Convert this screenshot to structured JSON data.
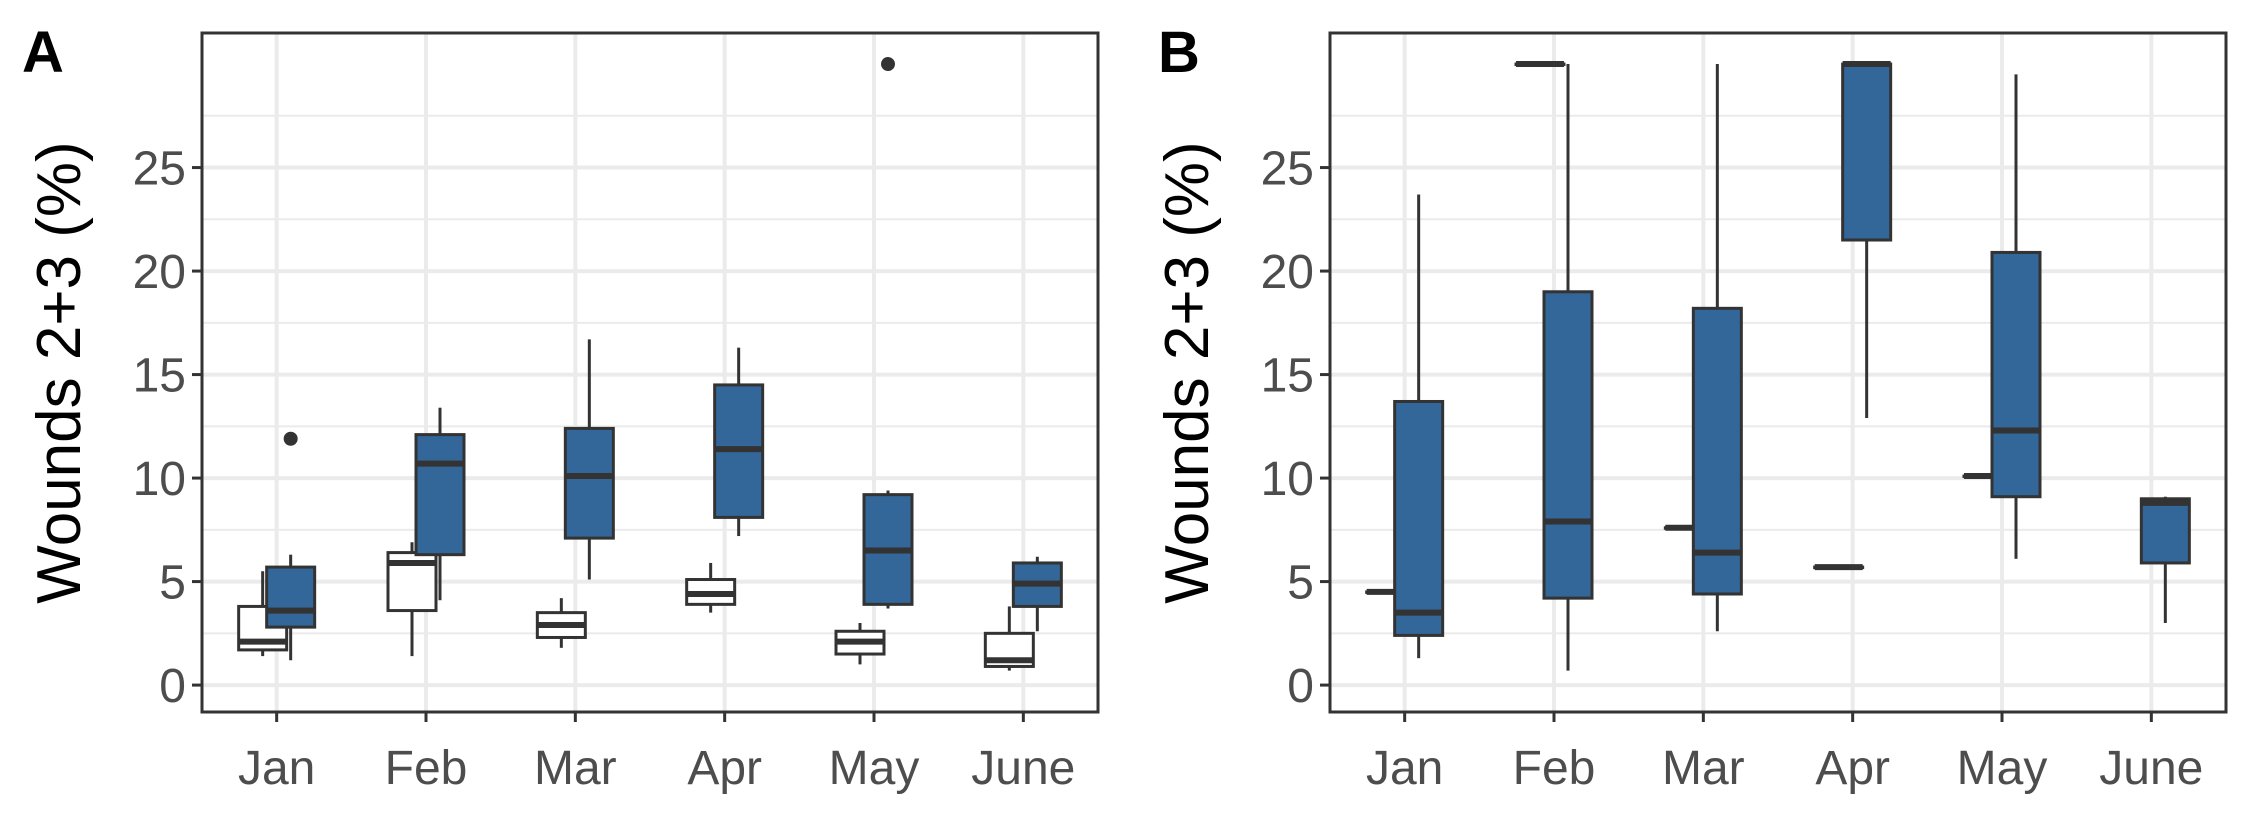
{
  "chart_data": [
    {
      "panel_label": "A",
      "type": "box",
      "ylabel": "Wounds 2+3 (%)",
      "xlabel": "",
      "categories": [
        "Jan",
        "Feb",
        "Mar",
        "Apr",
        "May",
        "June"
      ],
      "y_ticks": [
        0,
        5,
        10,
        15,
        20,
        25
      ],
      "ylim": [
        -1.3,
        31.5
      ],
      "grid": true,
      "series": [
        {
          "fill": "#ffffff",
          "boxes": [
            {
              "category": "Jan",
              "min": 1.4,
              "q1": 1.7,
              "median": 2.1,
              "q3": 3.8,
              "max": 5.5,
              "outliers": []
            },
            {
              "category": "Feb",
              "min": 1.4,
              "q1": 3.6,
              "median": 5.9,
              "q3": 6.4,
              "max": 6.9,
              "outliers": []
            },
            {
              "category": "Mar",
              "min": 1.8,
              "q1": 2.3,
              "median": 2.9,
              "q3": 3.5,
              "max": 4.2,
              "outliers": []
            },
            {
              "category": "Apr",
              "min": 3.5,
              "q1": 3.9,
              "median": 4.4,
              "q3": 5.1,
              "max": 5.9,
              "outliers": []
            },
            {
              "category": "May",
              "min": 1.0,
              "q1": 1.5,
              "median": 2.1,
              "q3": 2.6,
              "max": 3.0,
              "outliers": []
            },
            {
              "category": "June",
              "min": 0.7,
              "q1": 0.9,
              "median": 1.2,
              "q3": 2.5,
              "max": 3.8,
              "outliers": []
            }
          ]
        },
        {
          "fill": "#336699",
          "boxes": [
            {
              "category": "Jan",
              "min": 1.2,
              "q1": 2.8,
              "median": 3.6,
              "q3": 5.7,
              "max": 6.3,
              "outliers": [
                11.9
              ]
            },
            {
              "category": "Feb",
              "min": 4.1,
              "q1": 6.3,
              "median": 10.7,
              "q3": 12.1,
              "max": 13.4,
              "outliers": []
            },
            {
              "category": "Mar",
              "min": 5.1,
              "q1": 7.1,
              "median": 10.1,
              "q3": 12.4,
              "max": 16.7,
              "outliers": []
            },
            {
              "category": "Apr",
              "min": 7.2,
              "q1": 8.1,
              "median": 11.4,
              "q3": 14.5,
              "max": 16.3,
              "outliers": []
            },
            {
              "category": "May",
              "min": 3.7,
              "q1": 3.9,
              "median": 6.5,
              "q3": 9.2,
              "max": 9.4,
              "outliers": [
                30.0
              ]
            },
            {
              "category": "June",
              "min": 2.6,
              "q1": 3.8,
              "median": 4.9,
              "q3": 5.9,
              "max": 6.2,
              "outliers": []
            }
          ]
        }
      ]
    },
    {
      "panel_label": "B",
      "type": "box",
      "ylabel": "Wounds 2+3 (%)",
      "xlabel": "",
      "categories": [
        "Jan",
        "Feb",
        "Mar",
        "Apr",
        "May",
        "June"
      ],
      "y_ticks": [
        0,
        5,
        10,
        15,
        20,
        25
      ],
      "ylim": [
        -1.3,
        31.5
      ],
      "grid": true,
      "series": [
        {
          "fill": "#ffffff",
          "boxes": [
            {
              "category": "Jan",
              "min": 4.5,
              "q1": 4.5,
              "median": 4.5,
              "q3": 4.5,
              "max": 4.5,
              "outliers": []
            },
            {
              "category": "Feb",
              "min": 30.0,
              "q1": 30.0,
              "median": 30.0,
              "q3": 30.0,
              "max": 30.0,
              "outliers": []
            },
            {
              "category": "Mar",
              "min": 7.6,
              "q1": 7.6,
              "median": 7.6,
              "q3": 7.6,
              "max": 7.6,
              "outliers": []
            },
            {
              "category": "Apr",
              "min": 5.7,
              "q1": 5.7,
              "median": 5.7,
              "q3": 5.7,
              "max": 5.7,
              "outliers": []
            },
            {
              "category": "May",
              "min": 10.1,
              "q1": 10.1,
              "median": 10.1,
              "q3": 10.1,
              "max": 10.1,
              "outliers": []
            },
            {
              "category": "June",
              "min": null,
              "q1": null,
              "median": null,
              "q3": null,
              "max": null,
              "outliers": []
            }
          ]
        },
        {
          "fill": "#336699",
          "boxes": [
            {
              "category": "Jan",
              "min": 1.3,
              "q1": 2.4,
              "median": 3.5,
              "q3": 13.7,
              "max": 23.7,
              "outliers": []
            },
            {
              "category": "Feb",
              "min": 0.7,
              "q1": 4.2,
              "median": 7.9,
              "q3": 19.0,
              "max": 30.0,
              "outliers": []
            },
            {
              "category": "Mar",
              "min": 2.6,
              "q1": 4.4,
              "median": 6.4,
              "q3": 18.2,
              "max": 30.0,
              "outliers": []
            },
            {
              "category": "Apr",
              "min": 12.9,
              "q1": 21.5,
              "median": 30.0,
              "q3": 30.0,
              "max": 30.0,
              "outliers": []
            },
            {
              "category": "May",
              "min": 6.1,
              "q1": 9.1,
              "median": 12.3,
              "q3": 20.9,
              "max": 29.5,
              "outliers": []
            },
            {
              "category": "June",
              "min": 3.0,
              "q1": 5.9,
              "median": 8.8,
              "q3": 9.0,
              "max": 9.1,
              "outliers": []
            }
          ]
        }
      ]
    }
  ]
}
